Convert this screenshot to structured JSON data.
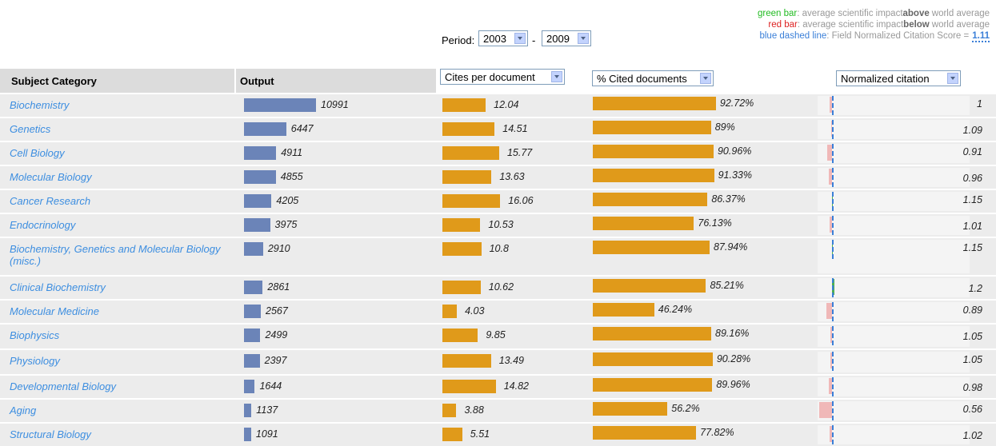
{
  "legend": {
    "lines": [
      {
        "label": "green bar",
        "color": "#22bb22",
        "before": ": average scientific impact",
        "strong": "above",
        "after": "world average"
      },
      {
        "label": "red bar",
        "color": "#dd2222",
        "before": ": average scientific impact",
        "strong": "below",
        "after": "world average"
      },
      {
        "label": "blue dashed line",
        "color": "#3a7fd8",
        "before": ": Field Normalized Citation Score =",
        "value": 1.11
      }
    ]
  },
  "period": {
    "label": "Period:",
    "from": "2003",
    "separator": "-",
    "to": "2009"
  },
  "table": {
    "columns": [
      "Subject Category",
      "Output",
      "Cites per document",
      "% Cited documents",
      "Normalized citation"
    ],
    "rows": [
      {
        "name": "Biochemistry",
        "output": 10991,
        "cites": 12.04,
        "cited": 92.72,
        "cited_label": "92.72%",
        "norm": 1
      },
      {
        "name": "Genetics",
        "output": 6447,
        "cites": 14.51,
        "cited": 89,
        "cited_label": "89%",
        "norm": 1.09
      },
      {
        "name": "Cell Biology",
        "output": 4911,
        "cites": 15.77,
        "cited": 90.96,
        "cited_label": "90.96%",
        "norm": 0.91
      },
      {
        "name": "Molecular Biology",
        "output": 4855,
        "cites": 13.63,
        "cited": 91.33,
        "cited_label": "91.33%",
        "norm": 0.96
      },
      {
        "name": "Cancer Research",
        "output": 4205,
        "cites": 16.06,
        "cited": 86.37,
        "cited_label": "86.37%",
        "norm": 1.15
      },
      {
        "name": "Endocrinology",
        "output": 3975,
        "cites": 10.53,
        "cited": 76.13,
        "cited_label": "76.13%",
        "norm": 1.01
      },
      {
        "name": "Biochemistry, Genetics and Molecular Biology (misc.)",
        "output": 2910,
        "cites": 10.8,
        "cited": 87.94,
        "cited_label": "87.94%",
        "norm": 1.15
      },
      {
        "name": "Clinical Biochemistry",
        "output": 2861,
        "cites": 10.62,
        "cited": 85.21,
        "cited_label": "85.21%",
        "norm": 1.2
      },
      {
        "name": "Molecular Medicine",
        "output": 2567,
        "cites": 4.03,
        "cited": 46.24,
        "cited_label": "46.24%",
        "norm": 0.89
      },
      {
        "name": "Biophysics",
        "output": 2499,
        "cites": 9.85,
        "cited": 89.16,
        "cited_label": "89.16%",
        "norm": 1.05
      },
      {
        "name": "Physiology",
        "output": 2397,
        "cites": 13.49,
        "cited": 90.28,
        "cited_label": "90.28%",
        "norm": 1.05
      },
      {
        "name": "Developmental Biology",
        "output": 1644,
        "cites": 14.82,
        "cited": 89.96,
        "cited_label": "89.96%",
        "norm": 0.98
      },
      {
        "name": "Aging",
        "output": 1137,
        "cites": 3.88,
        "cited": 56.2,
        "cited_label": "56.2%",
        "norm": 0.56
      },
      {
        "name": "Structural Biology",
        "output": 1091,
        "cites": 5.51,
        "cited": 77.82,
        "cited_label": "77.82%",
        "norm": 1.02
      }
    ]
  }
}
